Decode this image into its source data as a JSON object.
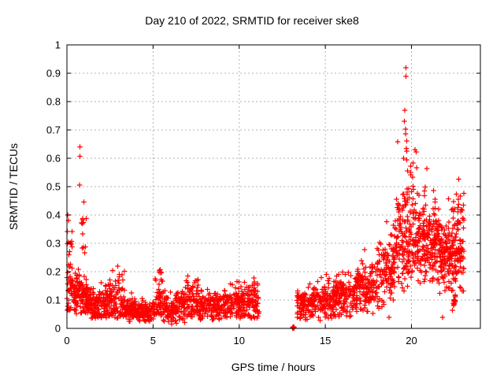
{
  "chart_data": {
    "type": "scatter",
    "title": "Day 210 of 2022, SRMTID for receiver ske8",
    "xlabel": "GPS time / hours",
    "ylabel": "SRMTID / TECUs",
    "xlim": [
      0,
      24
    ],
    "ylim": [
      0,
      1
    ],
    "x_ticks": [
      0,
      5,
      10,
      15,
      20
    ],
    "y_ticks": [
      "0",
      "0.1",
      "0.2",
      "0.3",
      "0.4",
      "0.5",
      "0.6",
      "0.7",
      "0.8",
      "0.9",
      "1"
    ],
    "grid": true,
    "legend": "none",
    "marker": {
      "shape": "plus",
      "color": "#ff0000",
      "size": 7
    },
    "colors": {
      "frame": "#000000",
      "grid": "#b3b3b3",
      "background": "#ffffff",
      "text": "#000000"
    },
    "data_gap_hours": [
      11.15,
      13.1
    ],
    "data_end_hour": 23.05,
    "segments_note": "band segments as [x_start, x_end, n_points, y_mean, y_sd, y_min, y_max] summarizing the dense scatter",
    "segments": [
      [
        0.0,
        0.35,
        42,
        0.15,
        0.055,
        0.06,
        0.44
      ],
      [
        0.02,
        0.3,
        8,
        0.345,
        0.05,
        0.28,
        0.43
      ],
      [
        0.35,
        1.2,
        115,
        0.12,
        0.04,
        0.05,
        0.3
      ],
      [
        0.85,
        1.15,
        12,
        0.33,
        0.06,
        0.26,
        0.45
      ],
      [
        1.2,
        2.3,
        130,
        0.085,
        0.03,
        0.035,
        0.2
      ],
      [
        2.3,
        2.75,
        55,
        0.1,
        0.045,
        0.04,
        0.23
      ],
      [
        2.75,
        3.35,
        60,
        0.1,
        0.05,
        0.035,
        0.25
      ],
      [
        3.35,
        5.1,
        190,
        0.062,
        0.02,
        0.022,
        0.13
      ],
      [
        5.1,
        5.6,
        55,
        0.09,
        0.05,
        0.03,
        0.25
      ],
      [
        5.6,
        6.2,
        65,
        0.068,
        0.024,
        0.02,
        0.14
      ],
      [
        6.2,
        6.9,
        75,
        0.08,
        0.032,
        0.015,
        0.16
      ],
      [
        6.9,
        7.7,
        90,
        0.1,
        0.035,
        0.04,
        0.19
      ],
      [
        7.7,
        9.4,
        180,
        0.08,
        0.027,
        0.03,
        0.15
      ],
      [
        9.4,
        10.3,
        100,
        0.09,
        0.032,
        0.035,
        0.17
      ],
      [
        10.3,
        11.15,
        95,
        0.09,
        0.035,
        0.03,
        0.19
      ],
      [
        13.3,
        14.3,
        110,
        0.085,
        0.03,
        0.03,
        0.16
      ],
      [
        14.3,
        15.6,
        140,
        0.1,
        0.035,
        0.035,
        0.23
      ],
      [
        15.6,
        16.8,
        130,
        0.115,
        0.04,
        0.04,
        0.27
      ],
      [
        16.8,
        18.0,
        130,
        0.145,
        0.05,
        0.05,
        0.32
      ],
      [
        18.0,
        19.0,
        115,
        0.19,
        0.06,
        0.07,
        0.38
      ],
      [
        19.0,
        20.6,
        195,
        0.3,
        0.085,
        0.13,
        0.55
      ],
      [
        19.45,
        20.45,
        28,
        0.47,
        0.04,
        0.4,
        0.55
      ],
      [
        20.6,
        21.6,
        160,
        0.3,
        0.068,
        0.15,
        0.5
      ],
      [
        21.6,
        22.4,
        120,
        0.26,
        0.065,
        0.12,
        0.46
      ],
      [
        22.4,
        23.05,
        105,
        0.28,
        0.085,
        0.1,
        0.48
      ],
      [
        22.38,
        22.58,
        12,
        0.09,
        0.015,
        0.06,
        0.12
      ]
    ],
    "outliers_note": "individually visible points as [hour, TECUs]",
    "outliers": [
      [
        0.755,
        0.64
      ],
      [
        0.76,
        0.607
      ],
      [
        0.74,
        0.505
      ],
      [
        0.05,
        0.4
      ],
      [
        0.08,
        0.38
      ],
      [
        6.07,
        0.015
      ],
      [
        6.3,
        0.028
      ],
      [
        14.7,
        0.028
      ],
      [
        18.7,
        0.039
      ],
      [
        21.8,
        0.039
      ],
      [
        19.68,
        0.92
      ],
      [
        19.68,
        0.889
      ],
      [
        19.62,
        0.77
      ],
      [
        19.58,
        0.731
      ],
      [
        19.66,
        0.703
      ],
      [
        19.66,
        0.686
      ],
      [
        19.2,
        0.659
      ],
      [
        19.73,
        0.661
      ],
      [
        19.7,
        0.635
      ],
      [
        19.72,
        0.625
      ],
      [
        20.2,
        0.631
      ],
      [
        20.28,
        0.622
      ],
      [
        19.55,
        0.6
      ],
      [
        19.72,
        0.595
      ],
      [
        20.1,
        0.583
      ],
      [
        19.95,
        0.572
      ],
      [
        20.3,
        0.567
      ],
      [
        20.9,
        0.564
      ],
      [
        19.78,
        0.556
      ],
      [
        22.74,
        0.526
      ],
      [
        22.6,
        0.473
      ],
      [
        22.15,
        0.457
      ],
      [
        22.7,
        0.427
      ]
    ],
    "zero_cluster_note": "blob of points at SRMTID = 0 near 13.15 h",
    "zero_cluster": [
      [
        13.1,
        0.002
      ],
      [
        13.13,
        0.004
      ],
      [
        13.16,
        0.001
      ],
      [
        13.19,
        0.003
      ],
      [
        13.14,
        0.006
      ],
      [
        13.17,
        0.005
      ],
      [
        13.12,
        0.0
      ],
      [
        13.2,
        0.002
      ]
    ]
  }
}
